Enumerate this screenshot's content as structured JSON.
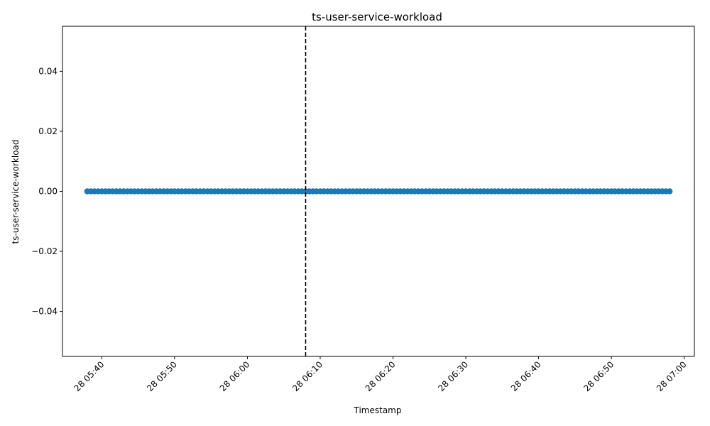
{
  "chart_data": {
    "type": "scatter",
    "title": "ts-user-service-workload",
    "xlabel": "Timestamp",
    "ylabel": "ts-user-service-workload",
    "x_start": "28 05:38",
    "x_end": "28 06:58",
    "x_step_seconds": 30,
    "point_value": 0.0,
    "x_ticks": [
      "28 05:40",
      "28 05:50",
      "28 06:00",
      "28 06:10",
      "28 06:20",
      "28 06:30",
      "28 06:40",
      "28 06:50",
      "28 07:00"
    ],
    "y_ticks": [
      "−0.04",
      "−0.02",
      "0.00",
      "0.02",
      "0.04"
    ],
    "y_tick_values": [
      -0.04,
      -0.02,
      0.0,
      0.02,
      0.04
    ],
    "ylim": [
      -0.055,
      0.055
    ],
    "xlim": [
      "28 05:34.6",
      "28 07:01.4"
    ],
    "vline_x": "28 06:08",
    "marker_color": "#1f77b4",
    "vline_color": "#000000",
    "grid": false,
    "legend": "none"
  }
}
